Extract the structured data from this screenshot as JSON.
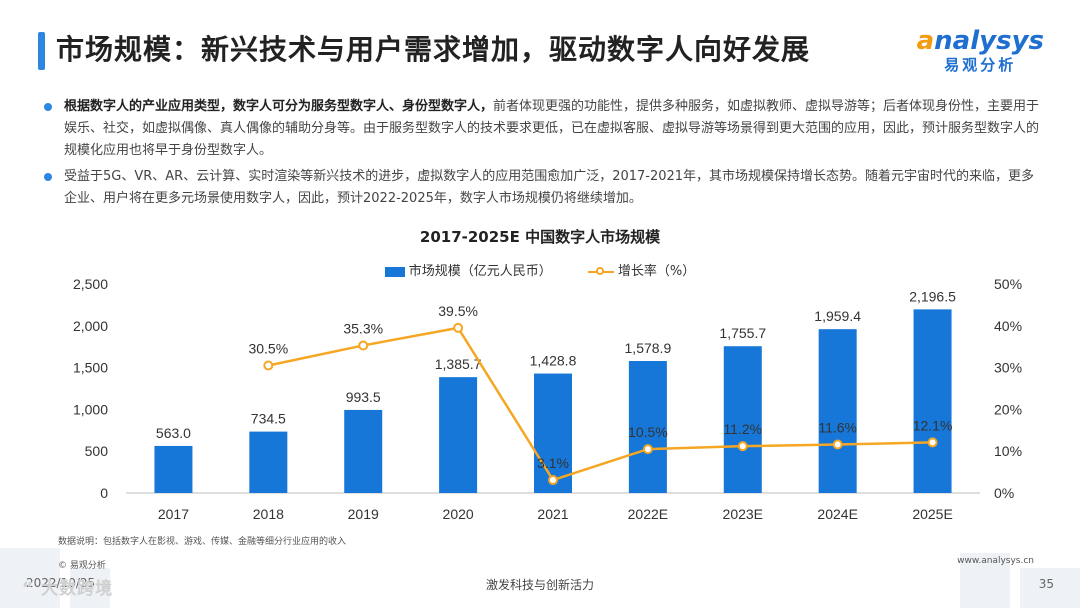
{
  "header": {
    "title": "市场规模：新兴技术与用户需求增加，驱动数字人向好发展",
    "logo_text_en": "nalysys",
    "logo_text_cn": "易观分析"
  },
  "bullets": [
    {
      "bold": "根据数字人的产业应用类型，数字人可分为服务型数字人、身份型数字人，",
      "text": "前者体现更强的功能性，提供多种服务，如虚拟教师、虚拟导游等；后者体现身份性，主要用于娱乐、社交，如虚拟偶像、真人偶像的辅助分身等。由于服务型数字人的技术要求更低，已在虚拟客服、虚拟导游等场景得到更大范围的应用，因此，预计服务型数字人的规模化应用也将早于身份型数字人。"
    },
    {
      "bold": "",
      "text": "受益于5G、VR、AR、云计算、实时渲染等新兴技术的进步，虚拟数字人的应用范围愈加广泛，2017-2021年，其市场规模保持增长态势。随着元宇宙时代的来临，更多企业、用户将在更多元场景使用数字人，因此，预计2022-2025年，数字人市场规模仍将继续增加。"
    }
  ],
  "chart_data": {
    "type": "bar",
    "title": "2017-2025E 中国数字人市场规模",
    "categories": [
      "2017",
      "2018",
      "2019",
      "2020",
      "2021",
      "2022E",
      "2023E",
      "2024E",
      "2025E"
    ],
    "series": [
      {
        "name": "市场规模（亿元人民币）",
        "type": "bar",
        "axis": "left",
        "values": [
          563.0,
          734.5,
          993.5,
          1385.7,
          1428.8,
          1578.9,
          1755.7,
          1959.4,
          2196.5
        ],
        "labels": [
          "563.0",
          "734.5",
          "993.5",
          "1,385.7",
          "1,428.8",
          "1,578.9",
          "1,755.7",
          "1,959.4",
          "2,196.5"
        ],
        "color": "#1677d8"
      },
      {
        "name": "增长率（%）",
        "type": "line",
        "axis": "right",
        "values": [
          null,
          30.5,
          35.3,
          39.5,
          3.1,
          10.5,
          11.2,
          11.6,
          12.1
        ],
        "labels": [
          "",
          "30.5%",
          "35.3%",
          "39.5%",
          "3.1%",
          "10.5%",
          "11.2%",
          "11.6%",
          "12.1%"
        ],
        "color": "#f5a623"
      }
    ],
    "ylim_left": [
      0,
      2500
    ],
    "yticks_left": [
      "0",
      "500",
      "1,000",
      "1,500",
      "2,000",
      "2,500"
    ],
    "ylim_right": [
      0,
      50
    ],
    "yticks_right": [
      "0%",
      "10%",
      "20%",
      "30%",
      "40%",
      "50%"
    ],
    "legend": "top-center",
    "grid": false
  },
  "footer": {
    "footnote": "数据说明：包括数字人在影视、游戏、传媒、金融等细分行业应用的收入",
    "copyright": "© 易观分析",
    "website": "www.analysys.cn",
    "date": "2022/10/25",
    "slogan": "激发科技与创新活力",
    "page": "35",
    "watermark": "“ 大数跨境"
  }
}
